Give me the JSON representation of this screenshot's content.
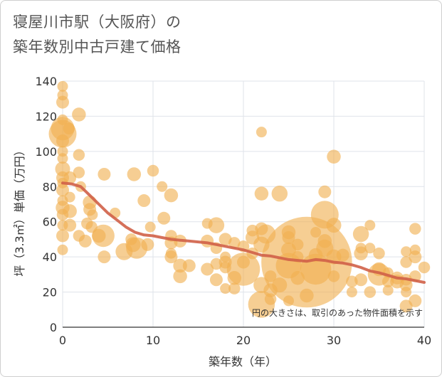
{
  "title_line1": "寝屋川市駅（大阪府）の",
  "title_line2": "築年数別中古戸建て価格",
  "chart_data": {
    "type": "scatter",
    "xlabel": "築年数（年）",
    "ylabel": "坪（3.3㎡）単価（万円）",
    "xlim": [
      0,
      40
    ],
    "ylim": [
      0,
      140
    ],
    "xticks": [
      "0",
      "10",
      "20",
      "30",
      "40"
    ],
    "yticks": [
      "0",
      "20",
      "40",
      "60",
      "80",
      "100",
      "120",
      "140"
    ],
    "grid": true,
    "annotation": "円の大きさは、取引のあった物件面積を示す",
    "colors": {
      "bubble": "#f0b050",
      "trend": "#d06048",
      "grid": "#dfe3ea"
    },
    "points": [
      {
        "x": 0,
        "y": 137,
        "s": 1
      },
      {
        "x": 0,
        "y": 132,
        "s": 1
      },
      {
        "x": 0,
        "y": 128,
        "s": 1.2
      },
      {
        "x": 0,
        "y": 118,
        "s": 1
      },
      {
        "x": 0,
        "y": 113,
        "s": 2.2
      },
      {
        "x": 0,
        "y": 110,
        "s": 2.6
      },
      {
        "x": 0,
        "y": 106,
        "s": 1.2
      },
      {
        "x": 0,
        "y": 100,
        "s": 1
      },
      {
        "x": 0,
        "y": 96,
        "s": 1
      },
      {
        "x": 0,
        "y": 90,
        "s": 1.4
      },
      {
        "x": 0,
        "y": 85,
        "s": 1.2
      },
      {
        "x": 0,
        "y": 82,
        "s": 1
      },
      {
        "x": 0,
        "y": 78,
        "s": 1.2
      },
      {
        "x": 0,
        "y": 72,
        "s": 1
      },
      {
        "x": 0,
        "y": 68,
        "s": 1.3
      },
      {
        "x": 0,
        "y": 64,
        "s": 1.1
      },
      {
        "x": 0,
        "y": 58,
        "s": 1
      },
      {
        "x": 0,
        "y": 52,
        "s": 1.2
      },
      {
        "x": 0,
        "y": 44,
        "s": 1
      },
      {
        "x": 0.7,
        "y": 113,
        "s": 1.1
      },
      {
        "x": 0.8,
        "y": 85,
        "s": 1.2
      },
      {
        "x": 0.8,
        "y": 74,
        "s": 1
      },
      {
        "x": 0.8,
        "y": 66,
        "s": 1.3
      },
      {
        "x": 0.8,
        "y": 58,
        "s": 1.2
      },
      {
        "x": 1.8,
        "y": 121,
        "s": 1.3
      },
      {
        "x": 1.8,
        "y": 98,
        "s": 1.1
      },
      {
        "x": 1.8,
        "y": 88,
        "s": 1.1
      },
      {
        "x": 1.8,
        "y": 52,
        "s": 1.1
      },
      {
        "x": 2,
        "y": 80,
        "s": 1
      },
      {
        "x": 2.5,
        "y": 49,
        "s": 1.2
      },
      {
        "x": 2.7,
        "y": 59,
        "s": 1.1
      },
      {
        "x": 3,
        "y": 71,
        "s": 1.3
      },
      {
        "x": 3,
        "y": 67,
        "s": 1.2
      },
      {
        "x": 3.2,
        "y": 57,
        "s": 1.1
      },
      {
        "x": 3.3,
        "y": 64,
        "s": 1
      },
      {
        "x": 4,
        "y": 52,
        "s": 1.3
      },
      {
        "x": 4.5,
        "y": 52,
        "s": 2.1
      },
      {
        "x": 4.6,
        "y": 87,
        "s": 1.2
      },
      {
        "x": 4.6,
        "y": 40,
        "s": 1.2
      },
      {
        "x": 5.8,
        "y": 65,
        "s": 1
      },
      {
        "x": 6.8,
        "y": 43,
        "s": 1.6
      },
      {
        "x": 7.6,
        "y": 50,
        "s": 1.1
      },
      {
        "x": 7.8,
        "y": 47,
        "s": 1.4
      },
      {
        "x": 7.9,
        "y": 87,
        "s": 1.3
      },
      {
        "x": 8.2,
        "y": 45,
        "s": 2
      },
      {
        "x": 9,
        "y": 72,
        "s": 1.2
      },
      {
        "x": 9.4,
        "y": 47,
        "s": 1.2
      },
      {
        "x": 9.7,
        "y": 57,
        "s": 1
      },
      {
        "x": 10,
        "y": 89,
        "s": 1.1
      },
      {
        "x": 11,
        "y": 80,
        "s": 1
      },
      {
        "x": 11.2,
        "y": 62,
        "s": 1.2
      },
      {
        "x": 12,
        "y": 75,
        "s": 1.3
      },
      {
        "x": 12,
        "y": 52,
        "s": 1.1
      },
      {
        "x": 12,
        "y": 48,
        "s": 1.2
      },
      {
        "x": 12,
        "y": 42,
        "s": 1
      },
      {
        "x": 12,
        "y": 40,
        "s": 1.2
      },
      {
        "x": 13,
        "y": 49,
        "s": 1.2
      },
      {
        "x": 13,
        "y": 35,
        "s": 1.3
      },
      {
        "x": 13,
        "y": 29,
        "s": 1.3
      },
      {
        "x": 14,
        "y": 35,
        "s": 1.2
      },
      {
        "x": 16,
        "y": 59,
        "s": 1
      },
      {
        "x": 16,
        "y": 49,
        "s": 1.2
      },
      {
        "x": 16,
        "y": 33,
        "s": 1.2
      },
      {
        "x": 17,
        "y": 58,
        "s": 1.5
      },
      {
        "x": 17,
        "y": 45,
        "s": 1.1
      },
      {
        "x": 17,
        "y": 36,
        "s": 1.1
      },
      {
        "x": 17,
        "y": 27,
        "s": 1.2
      },
      {
        "x": 18,
        "y": 50,
        "s": 1.2
      },
      {
        "x": 18,
        "y": 40,
        "s": 1
      },
      {
        "x": 18,
        "y": 37,
        "s": 1.2
      },
      {
        "x": 18,
        "y": 34,
        "s": 1.1
      },
      {
        "x": 18,
        "y": 22,
        "s": 1
      },
      {
        "x": 19,
        "y": 48,
        "s": 1.1
      },
      {
        "x": 19,
        "y": 28,
        "s": 1.3
      },
      {
        "x": 19,
        "y": 22,
        "s": 1.1
      },
      {
        "x": 20,
        "y": 46,
        "s": 1.1
      },
      {
        "x": 20,
        "y": 37,
        "s": 1.2
      },
      {
        "x": 20,
        "y": 33,
        "s": 3.1
      },
      {
        "x": 21,
        "y": 55,
        "s": 1.1
      },
      {
        "x": 21,
        "y": 51,
        "s": 1.3
      },
      {
        "x": 21,
        "y": 42,
        "s": 1.1
      },
      {
        "x": 22,
        "y": 111,
        "s": 1
      },
      {
        "x": 22,
        "y": 76,
        "s": 1.3
      },
      {
        "x": 22,
        "y": 56,
        "s": 1.2
      },
      {
        "x": 22,
        "y": 47,
        "s": 1.5
      },
      {
        "x": 22,
        "y": 24,
        "s": 1.5
      },
      {
        "x": 22,
        "y": 13,
        "s": 2.5
      },
      {
        "x": 22.5,
        "y": 53,
        "s": 1.8
      },
      {
        "x": 23,
        "y": 29,
        "s": 1.1
      },
      {
        "x": 23,
        "y": 21,
        "s": 1.3
      },
      {
        "x": 23,
        "y": 16,
        "s": 1.1
      },
      {
        "x": 24,
        "y": 76,
        "s": 1.5
      },
      {
        "x": 24,
        "y": 24,
        "s": 1.4
      },
      {
        "x": 25,
        "y": 54,
        "s": 1.3
      },
      {
        "x": 25,
        "y": 51,
        "s": 1.2
      },
      {
        "x": 25,
        "y": 44,
        "s": 1.4
      },
      {
        "x": 25,
        "y": 35,
        "s": 2.4
      },
      {
        "x": 25,
        "y": 15,
        "s": 1
      },
      {
        "x": 26,
        "y": 47,
        "s": 1.1
      },
      {
        "x": 26,
        "y": 40,
        "s": 1.1
      },
      {
        "x": 26,
        "y": 28,
        "s": 1.3
      },
      {
        "x": 27,
        "y": 37,
        "s": 8.5
      },
      {
        "x": 27,
        "y": 18,
        "s": 1.3
      },
      {
        "x": 28,
        "y": 54,
        "s": 1
      },
      {
        "x": 28,
        "y": 41,
        "s": 1.3
      },
      {
        "x": 28,
        "y": 33,
        "s": 2.9
      },
      {
        "x": 29,
        "y": 77,
        "s": 1.2
      },
      {
        "x": 29,
        "y": 64,
        "s": 2.6
      },
      {
        "x": 29,
        "y": 49,
        "s": 1.3
      },
      {
        "x": 29,
        "y": 45,
        "s": 1.6
      },
      {
        "x": 30,
        "y": 97,
        "s": 1.3
      },
      {
        "x": 30,
        "y": 58,
        "s": 1.4
      },
      {
        "x": 30,
        "y": 40,
        "s": 1.4
      },
      {
        "x": 30,
        "y": 29,
        "s": 1.1
      },
      {
        "x": 31,
        "y": 41,
        "s": 1.2
      },
      {
        "x": 32,
        "y": 26,
        "s": 1.1
      },
      {
        "x": 32,
        "y": 20,
        "s": 1
      },
      {
        "x": 33,
        "y": 53,
        "s": 1.5
      },
      {
        "x": 33,
        "y": 45,
        "s": 1
      },
      {
        "x": 33,
        "y": 42,
        "s": 1.3
      },
      {
        "x": 33,
        "y": 27,
        "s": 1.2
      },
      {
        "x": 34,
        "y": 58,
        "s": 1
      },
      {
        "x": 34,
        "y": 45,
        "s": 1
      },
      {
        "x": 34,
        "y": 20,
        "s": 1.1
      },
      {
        "x": 35,
        "y": 42,
        "s": 1.1
      },
      {
        "x": 35,
        "y": 33,
        "s": 1.3
      },
      {
        "x": 35,
        "y": 30,
        "s": 2.1
      },
      {
        "x": 36,
        "y": 31,
        "s": 1
      },
      {
        "x": 36,
        "y": 26,
        "s": 1.1
      },
      {
        "x": 36,
        "y": 21,
        "s": 1
      },
      {
        "x": 37,
        "y": 28,
        "s": 1.2
      },
      {
        "x": 37,
        "y": 26,
        "s": 1.3
      },
      {
        "x": 38,
        "y": 43,
        "s": 1
      },
      {
        "x": 38,
        "y": 37,
        "s": 1.1
      },
      {
        "x": 38,
        "y": 27,
        "s": 1.1
      },
      {
        "x": 38,
        "y": 24,
        "s": 1.2
      },
      {
        "x": 38,
        "y": 20,
        "s": 1
      },
      {
        "x": 38,
        "y": 12,
        "s": 1.2
      },
      {
        "x": 39,
        "y": 56,
        "s": 1.1
      },
      {
        "x": 39,
        "y": 44,
        "s": 1
      },
      {
        "x": 39,
        "y": 40,
        "s": 1.2
      },
      {
        "x": 39,
        "y": 29,
        "s": 1.1
      },
      {
        "x": 39,
        "y": 15,
        "s": 1.2
      },
      {
        "x": 40,
        "y": 34,
        "s": 1.1
      }
    ],
    "trend": {
      "x": [
        0,
        1,
        2,
        3,
        4,
        5,
        6,
        7,
        8,
        9,
        10,
        11,
        12,
        13,
        14,
        15,
        16,
        17,
        18,
        19,
        20,
        21,
        22,
        23,
        24,
        25,
        26,
        27,
        28,
        29,
        30,
        31,
        32,
        33,
        34,
        35,
        36,
        37,
        38,
        39,
        40
      ],
      "y": [
        82,
        81.5,
        80,
        75,
        70,
        65,
        61,
        57,
        54,
        52.5,
        52,
        51,
        50,
        49.5,
        49,
        48.5,
        48,
        47,
        46,
        45,
        44,
        42.5,
        41,
        40.5,
        39.5,
        38.5,
        38,
        37.5,
        38.5,
        38,
        37,
        36.5,
        35.5,
        34,
        32,
        31,
        29.5,
        28,
        27.5,
        26.5,
        25.5
      ]
    }
  }
}
